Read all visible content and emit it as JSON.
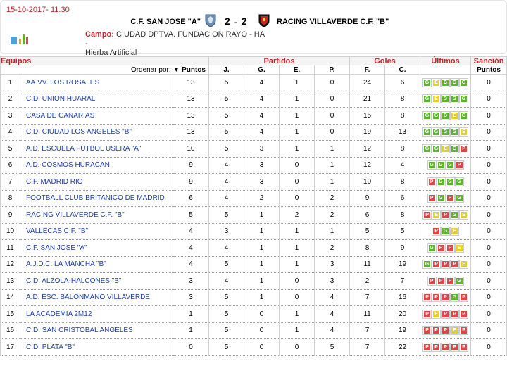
{
  "match": {
    "datetime": "15-10-2017- 11:30",
    "home_team": "C.F. SAN JOSE \"A\"",
    "home_score": "2",
    "separator": "-",
    "away_score": "2",
    "away_team": "RACING VILLAVERDE C.F. \"B\"",
    "venue_label": "Campo:",
    "venue_name": "CIUDAD DPTVA. FUNDACION RAYO - HA -",
    "venue_surface": "Hierba Artificial"
  },
  "table": {
    "group_headers": {
      "teams": "Equipos",
      "played": "Partidos",
      "goals": "Goles",
      "last": "Últimos",
      "sanction": "Sanción"
    },
    "sort_label": "Ordenar por:",
    "sort_arrow": "▼",
    "sort_field": "Puntos",
    "columns": {
      "j": "J.",
      "g": "G.",
      "e": "E.",
      "p": "P.",
      "f": "F.",
      "c": "C.",
      "sanction_points": "Puntos"
    },
    "rows": [
      {
        "pos": "1",
        "team": "AA.VV. LOS ROSALES",
        "pts": "13",
        "j": "5",
        "g": "4",
        "e": "1",
        "p": "0",
        "f": "24",
        "c": "6",
        "last": [
          "G",
          "E",
          "G",
          "G",
          "G"
        ],
        "sanction": "0"
      },
      {
        "pos": "2",
        "team": "C.D. UNION HUARAL",
        "pts": "13",
        "j": "5",
        "g": "4",
        "e": "1",
        "p": "0",
        "f": "21",
        "c": "8",
        "last": [
          "G",
          "E",
          "G",
          "G",
          "G"
        ],
        "sanction": "0"
      },
      {
        "pos": "3",
        "team": "CASA DE CANARIAS",
        "pts": "13",
        "j": "5",
        "g": "4",
        "e": "1",
        "p": "0",
        "f": "15",
        "c": "8",
        "last": [
          "G",
          "G",
          "G",
          "E",
          "G"
        ],
        "sanction": "0"
      },
      {
        "pos": "4",
        "team": "C.D. CIUDAD LOS ANGELES \"B\"",
        "pts": "13",
        "j": "5",
        "g": "4",
        "e": "1",
        "p": "0",
        "f": "19",
        "c": "13",
        "last": [
          "G",
          "G",
          "G",
          "G",
          "E"
        ],
        "sanction": "0"
      },
      {
        "pos": "5",
        "team": "A.D. ESCUELA FUTBOL USERA \"A\"",
        "pts": "10",
        "j": "5",
        "g": "3",
        "e": "1",
        "p": "1",
        "f": "12",
        "c": "8",
        "last": [
          "G",
          "G",
          "E",
          "G",
          "P"
        ],
        "sanction": "0"
      },
      {
        "pos": "6",
        "team": "A.D. COSMOS HURACAN",
        "pts": "9",
        "j": "4",
        "g": "3",
        "e": "0",
        "p": "1",
        "f": "12",
        "c": "4",
        "last": [
          "G",
          "G",
          "G",
          "P"
        ],
        "sanction": "0"
      },
      {
        "pos": "7",
        "team": "C.F. MADRID RIO",
        "pts": "9",
        "j": "4",
        "g": "3",
        "e": "0",
        "p": "1",
        "f": "10",
        "c": "8",
        "last": [
          "P",
          "G",
          "G",
          "G"
        ],
        "sanction": "0"
      },
      {
        "pos": "8",
        "team": "FOOTBALL CLUB BRITANICO DE MADRID",
        "pts": "6",
        "j": "4",
        "g": "2",
        "e": "0",
        "p": "2",
        "f": "9",
        "c": "6",
        "last": [
          "P",
          "G",
          "P",
          "G"
        ],
        "sanction": "0"
      },
      {
        "pos": "9",
        "team": "RACING VILLAVERDE C.F. \"B\"",
        "pts": "5",
        "j": "5",
        "g": "1",
        "e": "2",
        "p": "2",
        "f": "6",
        "c": "8",
        "last": [
          "P",
          "E",
          "P",
          "G",
          "E"
        ],
        "sanction": "0"
      },
      {
        "pos": "10",
        "team": "VALLECAS C.F. \"B\"",
        "pts": "4",
        "j": "3",
        "g": "1",
        "e": "1",
        "p": "1",
        "f": "5",
        "c": "5",
        "last": [
          "P",
          "G",
          "E"
        ],
        "sanction": "0"
      },
      {
        "pos": "11",
        "team": "C.F. SAN JOSE \"A\"",
        "pts": "4",
        "j": "4",
        "g": "1",
        "e": "1",
        "p": "2",
        "f": "8",
        "c": "9",
        "last": [
          "G",
          "P",
          "P",
          "E"
        ],
        "sanction": "0"
      },
      {
        "pos": "12",
        "team": "A.J.D.C. LA MANCHA \"B\"",
        "pts": "4",
        "j": "5",
        "g": "1",
        "e": "1",
        "p": "3",
        "f": "11",
        "c": "19",
        "last": [
          "G",
          "P",
          "P",
          "P",
          "E"
        ],
        "sanction": "0"
      },
      {
        "pos": "13",
        "team": "C.D. ALZOLA-HALCONES \"B\"",
        "pts": "3",
        "j": "4",
        "g": "1",
        "e": "0",
        "p": "3",
        "f": "2",
        "c": "7",
        "last": [
          "P",
          "P",
          "P",
          "G"
        ],
        "sanction": "0"
      },
      {
        "pos": "14",
        "team": "A.D. ESC. BALONMANO VILLAVERDE",
        "pts": "3",
        "j": "5",
        "g": "1",
        "e": "0",
        "p": "4",
        "f": "7",
        "c": "16",
        "last": [
          "P",
          "P",
          "P",
          "G",
          "P"
        ],
        "sanction": "0"
      },
      {
        "pos": "15",
        "team": "LA ACADEMIA 2M12",
        "pts": "1",
        "j": "5",
        "g": "0",
        "e": "1",
        "p": "4",
        "f": "11",
        "c": "20",
        "last": [
          "P",
          "E",
          "P",
          "P",
          "P"
        ],
        "sanction": "0"
      },
      {
        "pos": "16",
        "team": "C.D. SAN CRISTOBAL ANGELES",
        "pts": "1",
        "j": "5",
        "g": "0",
        "e": "1",
        "p": "4",
        "f": "7",
        "c": "19",
        "last": [
          "P",
          "P",
          "P",
          "E",
          "P"
        ],
        "sanction": "0"
      },
      {
        "pos": "17",
        "team": "C.D. PLATA \"B\"",
        "pts": "0",
        "j": "5",
        "g": "0",
        "e": "0",
        "p": "5",
        "f": "7",
        "c": "22",
        "last": [
          "P",
          "P",
          "P",
          "P",
          "P"
        ],
        "sanction": "0"
      }
    ]
  },
  "colors": {
    "accent_red": "#c0262c",
    "team_blue": "#1f3fa8",
    "win": "#5db52c",
    "draw": "#e4cf2e",
    "loss": "#e04646"
  }
}
